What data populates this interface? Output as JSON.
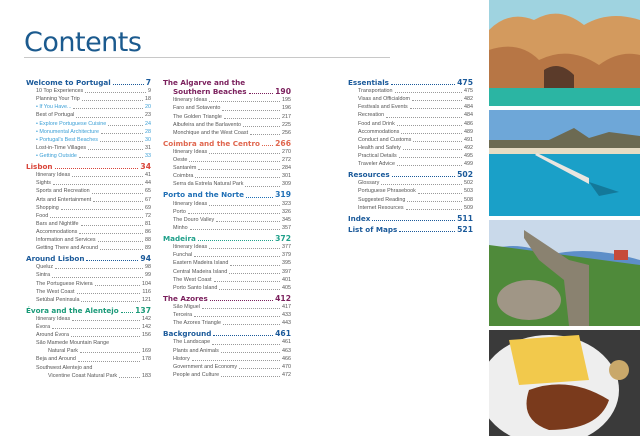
{
  "title": "Contents",
  "colors": {
    "title": "#1b5a8e",
    "item": "#555555",
    "highlight": "#3a9fd6"
  },
  "columns": [
    [
      {
        "title": "Welcome to Portugal",
        "page": "7",
        "color": "#1b5a9a",
        "items": [
          {
            "label": "10 Top Experiences",
            "page": "9"
          },
          {
            "label": "Planning Your Trip",
            "page": "18"
          },
          {
            "label": "• If You Have...",
            "page": "20",
            "hl": true
          },
          {
            "label": "Best of Portugal",
            "page": "23"
          },
          {
            "label": "• Explore Portuguese Cuisine",
            "page": "24",
            "hl": true
          },
          {
            "label": "• Monumental Architecture",
            "page": "28",
            "hl": true
          },
          {
            "label": "• Portugal's Best Beaches",
            "page": "30",
            "hl": true
          },
          {
            "label": "Lost-in-Time Villages",
            "page": "31"
          },
          {
            "label": "• Getting Outside",
            "page": "33",
            "hl": true
          }
        ]
      },
      {
        "title": "Lisbon",
        "page": "34",
        "color": "#d9453a",
        "items": [
          {
            "label": "Itinerary Ideas",
            "page": "41"
          },
          {
            "label": "Sights",
            "page": "44"
          },
          {
            "label": "Sports and Recreation",
            "page": "65"
          },
          {
            "label": "Arts and Entertainment",
            "page": "67"
          },
          {
            "label": "Shopping",
            "page": "69"
          },
          {
            "label": "Food",
            "page": "72"
          },
          {
            "label": "Bars and Nightlife",
            "page": "81"
          },
          {
            "label": "Accommodations",
            "page": "86"
          },
          {
            "label": "Information and Services",
            "page": "88"
          },
          {
            "label": "Getting There and Around",
            "page": "89"
          }
        ]
      },
      {
        "title": "Around Lisbon",
        "page": "94",
        "color": "#1b5a9a",
        "items": [
          {
            "label": "Queluz",
            "page": "98"
          },
          {
            "label": "Sintra",
            "page": "99"
          },
          {
            "label": "The Portuguese Riviera",
            "page": "104"
          },
          {
            "label": "The West Coast",
            "page": "116"
          },
          {
            "label": "Setúbal Peninsula",
            "page": "121"
          }
        ]
      },
      {
        "title": "Évora and the Alentejo",
        "page": "137",
        "color": "#1a9a78",
        "items": [
          {
            "label": "Itinerary Ideas",
            "page": "142"
          },
          {
            "label": "Évora",
            "page": "142"
          },
          {
            "label": "Around Évora",
            "page": "156"
          },
          {
            "label": "São Mamede Mountain Range",
            "cont": "Natural Park",
            "page": "169"
          },
          {
            "label": "Beja and Around",
            "page": "178"
          },
          {
            "label": "Southwest Alentejo and",
            "cont": "Vicentine Coast Natural Park",
            "page": "183"
          }
        ]
      }
    ],
    [
      {
        "title": "The Algarve and the",
        "title2": "Southern Beaches",
        "page": "190",
        "color": "#7a1f5c",
        "items": [
          {
            "label": "Itinerary Ideas",
            "page": "195"
          },
          {
            "label": "Faro and Sotavento",
            "page": "196"
          },
          {
            "label": "The Golden Triangle",
            "page": "217"
          },
          {
            "label": "Albufeira and the Barlavento",
            "page": "225"
          },
          {
            "label": "Monchique and the West Coast",
            "page": "256"
          }
        ]
      },
      {
        "title": "Coimbra and the Centro",
        "page": "266",
        "color": "#e0664e",
        "items": [
          {
            "label": "Itinerary Ideas",
            "page": "270"
          },
          {
            "label": "Oeste",
            "page": "272"
          },
          {
            "label": "Santarém",
            "page": "284"
          },
          {
            "label": "Coimbra",
            "page": "301"
          },
          {
            "label": "Serra da Estrela Natural Park",
            "page": "309"
          }
        ]
      },
      {
        "title": "Porto and the Norte",
        "page": "319",
        "color": "#1f6fb5",
        "items": [
          {
            "label": "Itinerary Ideas",
            "page": "323"
          },
          {
            "label": "Porto",
            "page": "326"
          },
          {
            "label": "The Douro Valley",
            "page": "345"
          },
          {
            "label": "Minho",
            "page": "357"
          }
        ]
      },
      {
        "title": "Madeira",
        "page": "372",
        "color": "#1fa08a",
        "items": [
          {
            "label": "Itinerary Ideas",
            "page": "377"
          },
          {
            "label": "Funchal",
            "page": "379"
          },
          {
            "label": "Eastern Madeira Island",
            "page": "395"
          },
          {
            "label": "Central Madeira Island",
            "page": "397"
          },
          {
            "label": "The West Coast",
            "page": "401"
          },
          {
            "label": "Porto Santo Island",
            "page": "405"
          }
        ]
      },
      {
        "title": "The Azores",
        "page": "412",
        "color": "#7a1f5c",
        "items": [
          {
            "label": "São Miguel",
            "page": "417"
          },
          {
            "label": "Terceira",
            "page": "433"
          },
          {
            "label": "The Azores Triangle",
            "page": "443"
          }
        ]
      },
      {
        "title": "Background",
        "page": "461",
        "color": "#1b5a9a",
        "items": [
          {
            "label": "The Landscape",
            "page": "461"
          },
          {
            "label": "Plants and Animals",
            "page": "463"
          },
          {
            "label": "History",
            "page": "466"
          },
          {
            "label": "Government and Economy",
            "page": "470"
          },
          {
            "label": "People and Culture",
            "page": "472"
          }
        ]
      }
    ],
    [
      {
        "title": "Essentials",
        "page": "475",
        "color": "#1b5a9a",
        "items": [
          {
            "label": "Transportation",
            "page": "475"
          },
          {
            "label": "Visas and Officialdom",
            "page": "482"
          },
          {
            "label": "Festivals and Events",
            "page": "484"
          },
          {
            "label": "Recreation",
            "page": "484"
          },
          {
            "label": "Food and Drink",
            "page": "486"
          },
          {
            "label": "Accommodations",
            "page": "489"
          },
          {
            "label": "Conduct and Customs",
            "page": "491"
          },
          {
            "label": "Health and Safety",
            "page": "492"
          },
          {
            "label": "Practical Details",
            "page": "495"
          },
          {
            "label": "Traveler Advice",
            "page": "499"
          }
        ]
      },
      {
        "title": "Resources",
        "page": "502",
        "color": "#1b5a9a",
        "items": [
          {
            "label": "Glossary",
            "page": "502"
          },
          {
            "label": "Portuguese Phrasebook",
            "page": "503"
          },
          {
            "label": "Suggested Reading",
            "page": "508"
          },
          {
            "label": "Internet Resources",
            "page": "509"
          }
        ]
      },
      {
        "title": "Index",
        "page": "511",
        "color": "#1b5a9a",
        "items": []
      },
      {
        "title": "List of Maps",
        "page": "521",
        "color": "#1b5a9a",
        "items": []
      }
    ]
  ]
}
